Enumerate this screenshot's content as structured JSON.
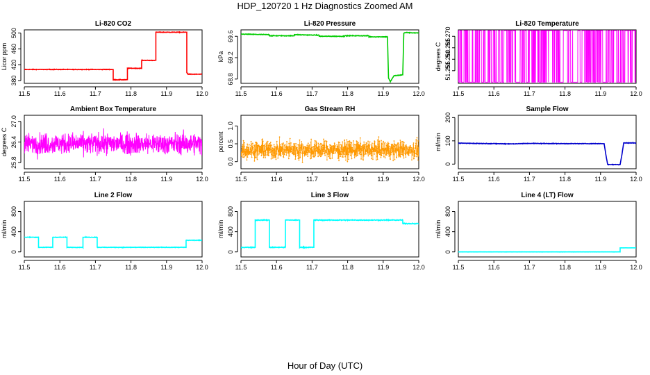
{
  "figure": {
    "title": "HDP_120720  1 Hz Diagnostics Zoomed AM",
    "xlabel": "Hour of Day (UTC)"
  },
  "chart_data": [
    {
      "type": "line",
      "title": "Li-820 CO2",
      "ylabel": "Licor ppm",
      "color": "#ff0000",
      "xlim": [
        11.5,
        12.0
      ],
      "ylim": [
        373,
        508
      ],
      "xticks": [
        11.5,
        11.6,
        11.7,
        11.8,
        11.9,
        12.0
      ],
      "xtick_labels": [
        "11.5",
        "11.6",
        "11.7",
        "11.8",
        "11.9",
        "12.0"
      ],
      "yticks": [
        380,
        420,
        460,
        500
      ],
      "ytick_labels": [
        "380",
        "420",
        "460",
        "500"
      ],
      "noise": 0.7,
      "series": [
        {
          "name": "CO2",
          "x": [
            11.5,
            11.75,
            11.75,
            11.79,
            11.79,
            11.83,
            11.83,
            11.87,
            11.87,
            11.957,
            11.957,
            11.96,
            11.96,
            12.0
          ],
          "y": [
            408,
            408,
            382,
            382,
            411,
            411,
            431,
            431,
            502,
            502,
            400,
            398,
            396,
            396
          ]
        }
      ]
    },
    {
      "type": "line",
      "title": "Li-820 Pressure",
      "ylabel": "kPa",
      "color": "#00cc00",
      "xlim": [
        11.5,
        12.0
      ],
      "ylim": [
        68.72,
        69.72
      ],
      "xticks": [
        11.5,
        11.6,
        11.7,
        11.8,
        11.9,
        12.0
      ],
      "xtick_labels": [
        "11.5",
        "11.6",
        "11.7",
        "11.8",
        "11.9",
        "12.0"
      ],
      "yticks": [
        68.8,
        69.2,
        69.6
      ],
      "ytick_labels": [
        "68.8",
        "69.2",
        "69.6"
      ],
      "noise": 0.006,
      "series": [
        {
          "name": "Pressure",
          "x": [
            11.5,
            11.58,
            11.58,
            11.65,
            11.65,
            11.72,
            11.72,
            11.79,
            11.79,
            11.86,
            11.86,
            11.912,
            11.915,
            11.92,
            11.93,
            11.955,
            11.958,
            11.965,
            12.0
          ],
          "y": [
            69.64,
            69.63,
            69.61,
            69.61,
            69.63,
            69.62,
            69.6,
            69.6,
            69.61,
            69.61,
            69.59,
            69.59,
            68.82,
            68.75,
            68.86,
            68.88,
            69.66,
            69.67,
            69.66
          ]
        }
      ]
    },
    {
      "type": "line",
      "title": "Li-820 Temperature",
      "ylabel": "degrees C",
      "color": "#ff00ff",
      "style": "binary-toggle",
      "levels": [
        51.25,
        51.2725
      ],
      "xlim": [
        11.5,
        12.0
      ],
      "ylim": [
        51.2495,
        51.2728
      ],
      "xticks": [
        11.5,
        11.6,
        11.7,
        11.8,
        11.9,
        12.0
      ],
      "xtick_labels": [
        "11.5",
        "11.6",
        "11.7",
        "11.8",
        "11.9",
        "12.0"
      ],
      "yticks": [
        51.255,
        51.26,
        51.265,
        51.27
      ],
      "ytick_labels": [
        "51.255",
        "51.260",
        "51.265",
        "51.270"
      ]
    },
    {
      "type": "line",
      "title": "Ambient Box Temperature",
      "ylabel": "degrees C",
      "color": "#ff00ff",
      "style": "noise",
      "center": 26.35,
      "spread": 0.3,
      "xlim": [
        11.5,
        12.0
      ],
      "ylim": [
        25.62,
        27.18
      ],
      "xticks": [
        11.5,
        11.6,
        11.7,
        11.8,
        11.9,
        12.0
      ],
      "xtick_labels": [
        "11.5",
        "11.6",
        "11.7",
        "11.8",
        "11.9",
        "12.0"
      ],
      "yticks": [
        25.8,
        26.4,
        27.0
      ],
      "ytick_labels": [
        "25.8",
        "26.4",
        "27.0"
      ]
    },
    {
      "type": "scatter",
      "title": "Gas Stream RH",
      "ylabel": "percent",
      "color": "#ff9900",
      "style": "noise-points",
      "center": 0.33,
      "spread": 0.25,
      "xlim": [
        11.5,
        12.0
      ],
      "ylim": [
        -0.2,
        1.3
      ],
      "xticks": [
        11.5,
        11.6,
        11.7,
        11.8,
        11.9,
        12.0
      ],
      "xtick_labels": [
        "11.5",
        "11.6",
        "11.7",
        "11.8",
        "11.9",
        "12.0"
      ],
      "yticks": [
        0.0,
        0.5,
        1.0
      ],
      "ytick_labels": [
        "0.0",
        "0.5",
        "1.0"
      ]
    },
    {
      "type": "line",
      "title": "Sample Flow",
      "ylabel": "ml/min",
      "color": "#0000cc",
      "xlim": [
        11.5,
        12.0
      ],
      "ylim": [
        -20,
        210
      ],
      "xticks": [
        11.5,
        11.6,
        11.7,
        11.8,
        11.9,
        12.0
      ],
      "xtick_labels": [
        "11.5",
        "11.6",
        "11.7",
        "11.8",
        "11.9",
        "12.0"
      ],
      "yticks": [
        0,
        100,
        200
      ],
      "ytick_labels": [
        "0",
        "100",
        "200"
      ],
      "noise": 1.2,
      "series": [
        {
          "name": "Sample Flow",
          "x": [
            11.5,
            11.6,
            11.65,
            11.7,
            11.8,
            11.91,
            11.915,
            11.92,
            11.955,
            11.96,
            11.965,
            12.0
          ],
          "y": [
            90,
            88,
            87,
            89,
            88,
            88,
            40,
            -2,
            -2,
            40,
            91,
            91
          ]
        }
      ]
    },
    {
      "type": "line",
      "title": "Line 2 Flow",
      "ylabel": "ml/min",
      "color": "#00ffff",
      "xlim": [
        11.5,
        12.0
      ],
      "ylim": [
        -100,
        1000
      ],
      "xticks": [
        11.5,
        11.6,
        11.7,
        11.8,
        11.9,
        12.0
      ],
      "xtick_labels": [
        "11.5",
        "11.6",
        "11.7",
        "11.8",
        "11.9",
        "12.0"
      ],
      "yticks": [
        0,
        400,
        800
      ],
      "ytick_labels": [
        "0",
        "400",
        "800"
      ],
      "noise": 5,
      "series": [
        {
          "name": "Line 2",
          "x": [
            11.5,
            11.54,
            11.54,
            11.58,
            11.58,
            11.62,
            11.62,
            11.665,
            11.665,
            11.705,
            11.705,
            11.955,
            11.955,
            12.0
          ],
          "y": [
            290,
            290,
            90,
            90,
            290,
            290,
            90,
            90,
            290,
            290,
            90,
            90,
            230,
            230
          ]
        }
      ]
    },
    {
      "type": "line",
      "title": "Line 3 Flow",
      "ylabel": "ml/min",
      "color": "#00ffff",
      "xlim": [
        11.5,
        12.0
      ],
      "ylim": [
        -100,
        1000
      ],
      "xticks": [
        11.5,
        11.6,
        11.7,
        11.8,
        11.9,
        12.0
      ],
      "xtick_labels": [
        "11.5",
        "11.6",
        "11.7",
        "11.8",
        "11.9",
        "12.0"
      ],
      "yticks": [
        0,
        400,
        800
      ],
      "ytick_labels": [
        "0",
        "400",
        "800"
      ],
      "noise": 8,
      "series": [
        {
          "name": "Line 3",
          "x": [
            11.5,
            11.54,
            11.54,
            11.58,
            11.58,
            11.625,
            11.625,
            11.665,
            11.665,
            11.705,
            11.705,
            11.955,
            11.955,
            12.0
          ],
          "y": [
            90,
            90,
            630,
            630,
            90,
            90,
            630,
            630,
            90,
            90,
            630,
            630,
            560,
            560
          ]
        }
      ]
    },
    {
      "type": "line",
      "title": "Line 4 (LT) Flow",
      "ylabel": "ml/min",
      "color": "#00ffff",
      "xlim": [
        11.5,
        12.0
      ],
      "ylim": [
        -100,
        1000
      ],
      "xticks": [
        11.5,
        11.6,
        11.7,
        11.8,
        11.9,
        12.0
      ],
      "xtick_labels": [
        "11.5",
        "11.6",
        "11.7",
        "11.8",
        "11.9",
        "12.0"
      ],
      "yticks": [
        0,
        400,
        800
      ],
      "ytick_labels": [
        "0",
        "400",
        "800"
      ],
      "noise": 1,
      "series": [
        {
          "name": "Line 4",
          "x": [
            11.5,
            11.955,
            11.955,
            12.0
          ],
          "y": [
            0,
            0,
            80,
            80
          ]
        }
      ]
    }
  ]
}
